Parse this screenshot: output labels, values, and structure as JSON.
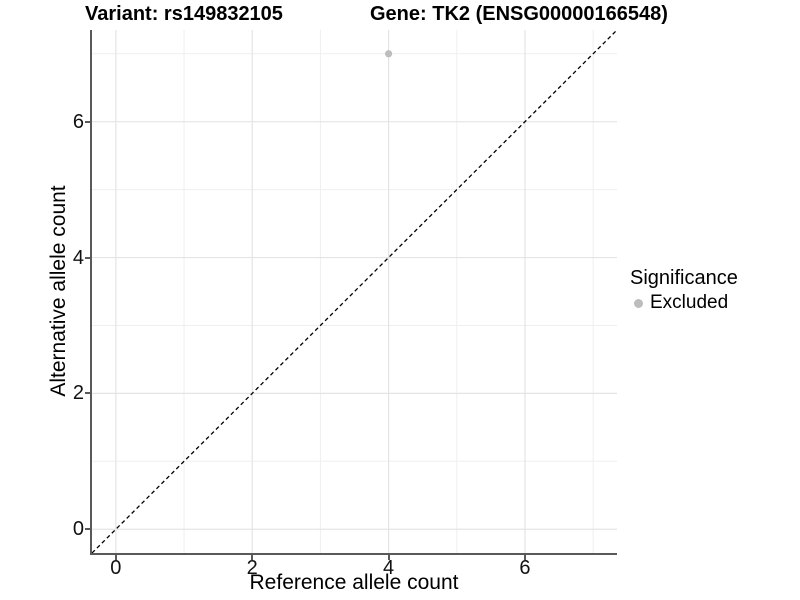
{
  "header": {
    "title_variant": "Variant: rs149832105",
    "title_gene": "Gene: TK2 (ENSG00000166548)"
  },
  "chart_data": {
    "type": "scatter",
    "title_variant": "Variant: rs149832105",
    "title_gene": "Gene: TK2 (ENSG00000166548)",
    "xlabel": "Reference allele count",
    "ylabel": "Alternative allele count",
    "xlim": [
      -0.35,
      7.35
    ],
    "ylim": [
      -0.35,
      7.35
    ],
    "xticks": [
      0,
      2,
      4,
      6
    ],
    "yticks": [
      0,
      2,
      4,
      6
    ],
    "minor_gridlines_x": [
      1,
      3,
      5,
      7
    ],
    "minor_gridlines_y": [
      1,
      3,
      5,
      7
    ],
    "grid": true,
    "series": [
      {
        "name": "Excluded",
        "color": "#bdbdbd",
        "points": [
          {
            "x": 4,
            "y": 7
          }
        ]
      }
    ],
    "reference_line": {
      "kind": "identity y=x",
      "style": "dashed",
      "color": "#000000"
    },
    "legend": {
      "position": "right",
      "title": "Significance",
      "entries": [
        {
          "label": "Excluded",
          "color": "#bdbdbd"
        }
      ]
    }
  },
  "colors": {
    "background": "#ffffff",
    "grid_major": "#e4e4e4",
    "grid_minor": "#efefef",
    "axis_line": "#595959",
    "point": "#bdbdbd",
    "reference_line": "#000000",
    "text": "#000000"
  }
}
